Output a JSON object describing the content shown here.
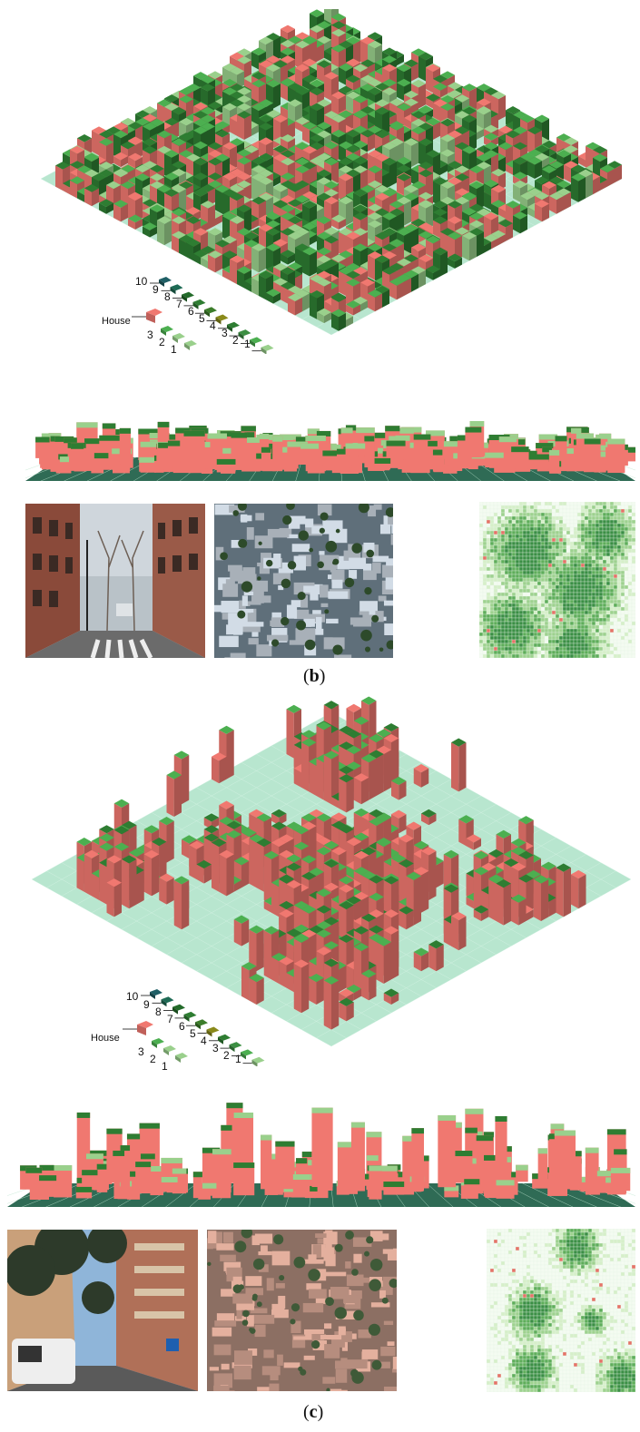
{
  "colors": {
    "house": "#f07870",
    "tree_dark": "#2e7d32",
    "tree_mid": "#4caf50",
    "tree_light": "#9ad08c",
    "ground": "#b8e6cf",
    "water": "#1f6f78",
    "olive": "#8a8a1a",
    "grid_line": "#ffffff"
  },
  "legend_b": {
    "house_label": "House",
    "tree_heights": [
      "10",
      "9",
      "8",
      "7",
      "6",
      "5",
      "4",
      "3",
      "2",
      "1"
    ],
    "house_heights": [
      "3",
      "2",
      "1"
    ]
  },
  "legend_c": {
    "house_label": "House",
    "tree_heights": [
      "10",
      "9",
      "8",
      "7",
      "6",
      "5",
      "4",
      "3",
      "2",
      "1"
    ],
    "house_heights": [
      "3",
      "2",
      "1"
    ]
  },
  "captions": {
    "b_open": "(",
    "b_letter": "b",
    "b_close": ")",
    "c_open": "(",
    "c_letter": "c",
    "c_close": ")"
  },
  "icons": {
    "street_view": "street-photo-icon",
    "satellite": "satellite-photo-icon",
    "canopy_map": "canopy-grid-icon"
  }
}
